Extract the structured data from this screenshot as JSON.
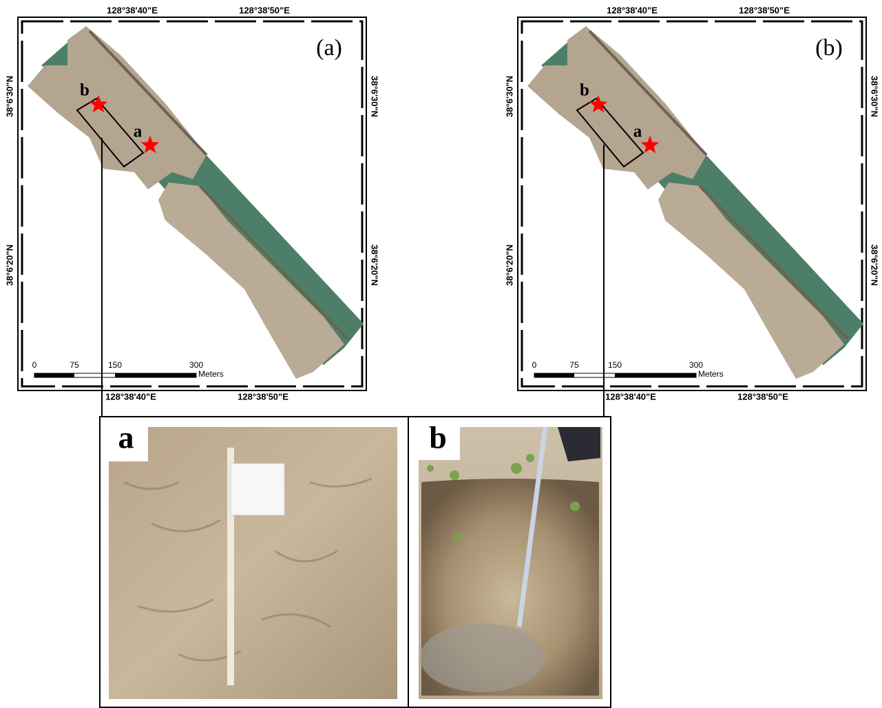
{
  "maps": [
    {
      "label": "(a)",
      "top_ticks": [
        "128°38'40\"E",
        "128°38'50\"E"
      ],
      "bottom_ticks": [
        "128°38'40\"E",
        "128°38'50\"E"
      ],
      "left_ticks": [
        "38°6'30\"N",
        "38°6'20\"N"
      ],
      "right_ticks": [
        "38°6'30\"N",
        "38°6'20\"N"
      ],
      "site_labels": [
        "b",
        "a"
      ],
      "scale": {
        "ticks": [
          "0",
          "75",
          "150",
          "300"
        ],
        "unit": "Meters"
      }
    },
    {
      "label": "(b)",
      "top_ticks": [
        "128°38'40\"E",
        "128°38'50\"E"
      ],
      "bottom_ticks": [
        "128°38'40\"E",
        "128°38'50\"E"
      ],
      "left_ticks": [
        "38°6'30\"N",
        "38°6'20\"N"
      ],
      "right_ticks": [
        "38°6'30\"N",
        "38°6'20\"N"
      ],
      "site_labels": [
        "b",
        "a"
      ],
      "scale": {
        "ticks": [
          "0",
          "75",
          "150",
          "300"
        ],
        "unit": "Meters"
      }
    }
  ],
  "photos": [
    {
      "label": "a"
    },
    {
      "label": "b"
    }
  ]
}
